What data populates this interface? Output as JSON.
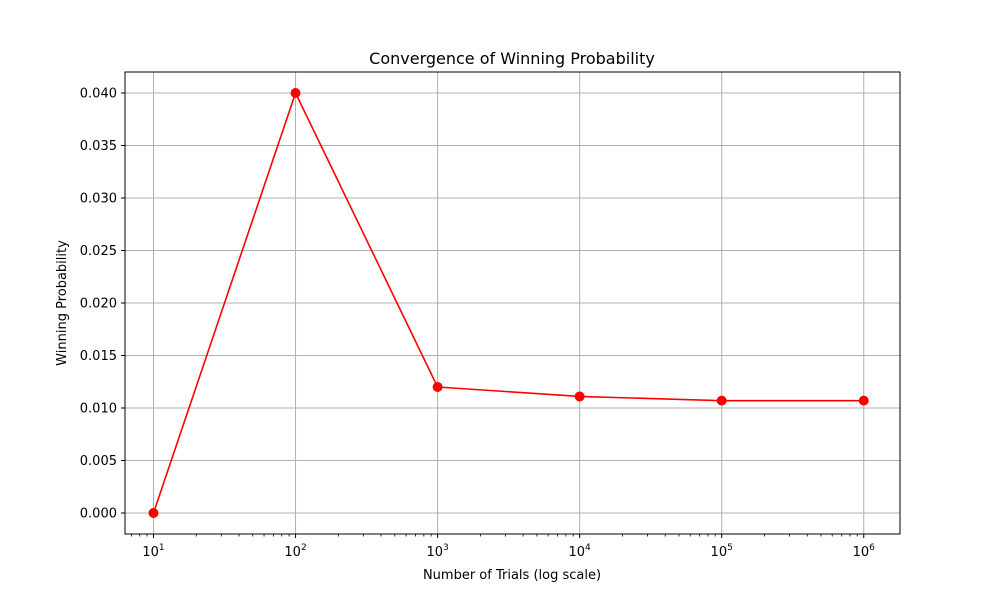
{
  "chart_data": {
    "type": "line",
    "title": "Convergence of Winning Probability",
    "xlabel": "Number of Trials (log scale)",
    "ylabel": "Winning Probability",
    "x_scale": "log",
    "x": [
      10,
      100,
      1000,
      10000,
      100000,
      1000000
    ],
    "series": [
      {
        "values": [
          0.0,
          0.04,
          0.012,
          0.0111,
          0.0107,
          0.0107
        ],
        "color": "#ff0000",
        "marker": "circle"
      }
    ],
    "xlim": [
      6.3,
      1800000
    ],
    "ylim": [
      -0.002,
      0.042
    ],
    "x_ticks": [
      {
        "value": 10,
        "base": "10",
        "exp": "1"
      },
      {
        "value": 100,
        "base": "10",
        "exp": "2"
      },
      {
        "value": 1000,
        "base": "10",
        "exp": "3"
      },
      {
        "value": 10000,
        "base": "10",
        "exp": "4"
      },
      {
        "value": 100000,
        "base": "10",
        "exp": "5"
      },
      {
        "value": 1000000,
        "base": "10",
        "exp": "6"
      }
    ],
    "y_ticks": [
      0.0,
      0.005,
      0.01,
      0.015,
      0.02,
      0.025,
      0.03,
      0.035,
      0.04
    ],
    "y_tick_labels": [
      "0.000",
      "0.005",
      "0.010",
      "0.015",
      "0.020",
      "0.025",
      "0.030",
      "0.035",
      "0.040"
    ],
    "grid": true,
    "grid_color": "#b0b0b0",
    "legend": "none"
  }
}
